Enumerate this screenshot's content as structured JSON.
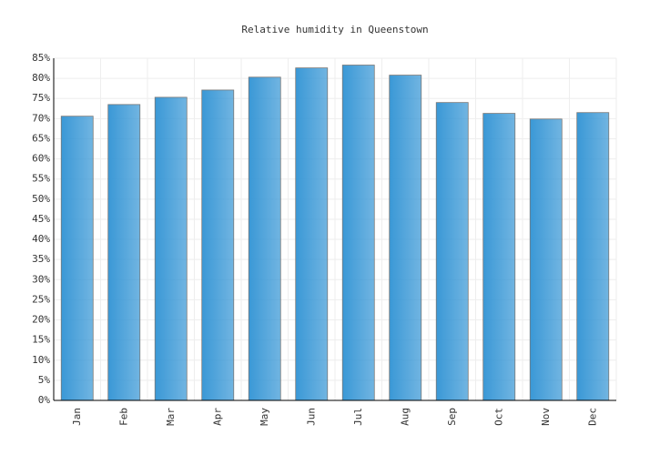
{
  "chart_data": {
    "type": "bar",
    "title": "Relative humidity in Queenstown",
    "categories": [
      "Jan",
      "Feb",
      "Mar",
      "Apr",
      "May",
      "Jun",
      "Jul",
      "Aug",
      "Sep",
      "Oct",
      "Nov",
      "Dec"
    ],
    "values": [
      70.6,
      73.5,
      75.3,
      77.1,
      80.3,
      82.6,
      83.3,
      80.8,
      74.0,
      71.3,
      69.9,
      71.5
    ],
    "color": "#3a98d6",
    "ylim": [
      0,
      85
    ],
    "yticks": [
      {
        "value": 0,
        "label": "0%"
      },
      {
        "value": 5,
        "label": "5%"
      },
      {
        "value": 10,
        "label": "10%"
      },
      {
        "value": 15,
        "label": "15%"
      },
      {
        "value": 20,
        "label": "20%"
      },
      {
        "value": 25,
        "label": "25%"
      },
      {
        "value": 30,
        "label": "30%"
      },
      {
        "value": 35,
        "label": "35%"
      },
      {
        "value": 40,
        "label": "40%"
      },
      {
        "value": 45,
        "label": "45%"
      },
      {
        "value": 50,
        "label": "50%"
      },
      {
        "value": 55,
        "label": "55%"
      },
      {
        "value": 60,
        "label": "60%"
      },
      {
        "value": 65,
        "label": "65%"
      },
      {
        "value": 70,
        "label": "70%"
      },
      {
        "value": 75,
        "label": "75%"
      },
      {
        "value": 80,
        "label": "80%"
      },
      {
        "value": 85,
        "label": "85%"
      }
    ],
    "grid": true
  }
}
